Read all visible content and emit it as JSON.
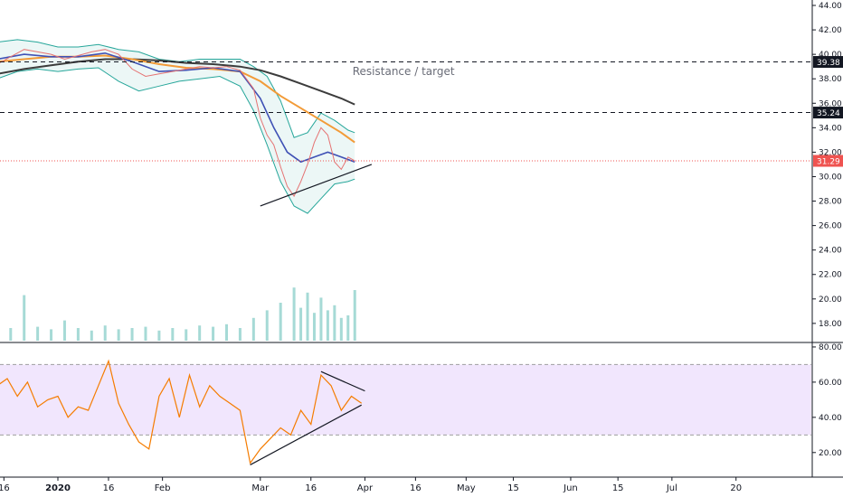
{
  "chart_data": {
    "type": "line",
    "panes": [
      "price",
      "rsi"
    ],
    "price_axis": {
      "ylim": [
        16.8,
        44.6
      ],
      "ticks": [
        "44.00",
        "42.00",
        "40.00",
        "38.00",
        "36.00",
        "34.00",
        "32.00",
        "30.00",
        "28.00",
        "26.00",
        "24.00",
        "22.00",
        "20.00",
        "18.00"
      ]
    },
    "rsi_axis": {
      "ylim": [
        5,
        81
      ],
      "ticks": [
        "80.00",
        "60.00",
        "40.00",
        "20.00"
      ],
      "band": [
        30,
        70
      ]
    },
    "x_axis": {
      "labels": [
        {
          "text": "16",
          "day": -16,
          "bold": false
        },
        {
          "text": "2020",
          "day": 0,
          "bold": true
        },
        {
          "text": "16",
          "day": 15,
          "bold": false
        },
        {
          "text": "Feb",
          "day": 31,
          "bold": false
        },
        {
          "text": "Mar",
          "day": 60,
          "bold": false
        },
        {
          "text": "16",
          "day": 75,
          "bold": false
        },
        {
          "text": "Apr",
          "day": 91,
          "bold": false
        },
        {
          "text": "16",
          "day": 106,
          "bold": false
        },
        {
          "text": "May",
          "day": 121,
          "bold": false
        },
        {
          "text": "15",
          "day": 135,
          "bold": false
        },
        {
          "text": "Jun",
          "day": 152,
          "bold": false
        },
        {
          "text": "15",
          "day": 166,
          "bold": false
        },
        {
          "text": "Jul",
          "day": 182,
          "bold": false
        },
        {
          "text": "20",
          "day": 201,
          "bold": false
        }
      ]
    },
    "horizontal_levels": [
      {
        "value": 39.38,
        "label": "39.38",
        "style": "dashed",
        "color": "#131722"
      },
      {
        "value": 35.24,
        "label": "35.24",
        "style": "dashed",
        "color": "#131722"
      },
      {
        "value": 31.29,
        "label": "31.29",
        "style": "dotted",
        "color": "#ef5350"
      }
    ],
    "annotations": [
      {
        "text": "Resistance / target",
        "day": 75,
        "value": 38.6
      }
    ],
    "trendlines": [
      {
        "pane": "price",
        "from": [
          60,
          27.6
        ],
        "to": [
          93,
          31.0
        ]
      },
      {
        "pane": "rsi",
        "from": [
          57,
          13
        ],
        "to": [
          90,
          47
        ]
      },
      {
        "pane": "rsi",
        "from": [
          78,
          66
        ],
        "to": [
          91,
          55
        ]
      }
    ],
    "series": {
      "price_close": {
        "color": "#e57373",
        "days": [
          -18,
          -14,
          -10,
          -6,
          -2,
          2,
          6,
          10,
          14,
          18,
          22,
          26,
          30,
          34,
          38,
          42,
          46,
          50,
          54,
          58,
          60,
          62,
          64,
          66,
          68,
          70,
          72,
          74,
          76,
          78,
          80,
          82,
          84,
          86,
          88
        ],
        "values": [
          39.2,
          39.8,
          40.4,
          40.2,
          40.0,
          39.6,
          39.9,
          40.2,
          40.4,
          40.0,
          38.8,
          38.2,
          38.4,
          38.6,
          38.8,
          39.0,
          38.9,
          39.0,
          38.7,
          37.2,
          34.8,
          33.4,
          32.6,
          30.8,
          29.2,
          28.4,
          29.6,
          31.0,
          32.8,
          34.0,
          33.4,
          31.2,
          30.6,
          31.6,
          31.3
        ]
      },
      "sma_short": {
        "color": "#3f51b5",
        "days": [
          -18,
          -10,
          -2,
          6,
          14,
          22,
          30,
          38,
          46,
          54,
          60,
          64,
          68,
          72,
          76,
          80,
          84,
          88
        ],
        "values": [
          39.6,
          40.0,
          39.8,
          39.8,
          40.1,
          39.4,
          38.6,
          38.7,
          38.9,
          38.6,
          36.4,
          34.0,
          32.0,
          31.2,
          31.6,
          32.0,
          31.6,
          31.2
        ]
      },
      "sma_mid": {
        "color": "#f29b38",
        "days": [
          -18,
          -10,
          -2,
          6,
          14,
          22,
          30,
          38,
          46,
          54,
          60,
          66,
          72,
          78,
          84,
          88
        ],
        "values": [
          39.4,
          39.6,
          39.8,
          39.8,
          39.9,
          39.6,
          39.2,
          38.9,
          38.8,
          38.6,
          37.8,
          36.6,
          35.6,
          34.6,
          33.6,
          32.8
        ]
      },
      "sma_long": {
        "color": "#3c3c3c",
        "days": [
          -18,
          -10,
          -2,
          6,
          14,
          22,
          30,
          38,
          46,
          54,
          60,
          66,
          72,
          78,
          84,
          88
        ],
        "values": [
          38.4,
          38.8,
          39.1,
          39.4,
          39.6,
          39.6,
          39.5,
          39.3,
          39.2,
          39.0,
          38.7,
          38.2,
          37.6,
          37.0,
          36.4,
          35.9
        ]
      },
      "bb_upper": {
        "color": "#26a69a",
        "days": [
          -18,
          -12,
          -6,
          0,
          6,
          12,
          18,
          24,
          30,
          36,
          42,
          48,
          54,
          58,
          62,
          66,
          70,
          74,
          78,
          82,
          86,
          88
        ],
        "values": [
          41.0,
          41.2,
          41.0,
          40.6,
          40.6,
          40.8,
          40.4,
          40.2,
          39.6,
          39.4,
          39.6,
          39.6,
          39.6,
          39.0,
          38.2,
          36.2,
          33.2,
          33.6,
          35.2,
          34.6,
          33.8,
          33.6
        ]
      },
      "bb_lower": {
        "color": "#26a69a",
        "days": [
          -18,
          -12,
          -6,
          0,
          6,
          12,
          18,
          24,
          30,
          36,
          42,
          48,
          54,
          58,
          62,
          66,
          70,
          74,
          78,
          82,
          86,
          88
        ],
        "values": [
          38.0,
          38.6,
          38.8,
          38.6,
          38.8,
          38.9,
          37.8,
          37.0,
          37.4,
          37.8,
          38.0,
          38.2,
          37.4,
          35.4,
          32.6,
          29.6,
          27.6,
          27.0,
          28.2,
          29.4,
          29.6,
          29.8
        ]
      },
      "rsi": {
        "color": "#f57c00",
        "days": [
          -18,
          -15,
          -12,
          -9,
          -6,
          -3,
          0,
          3,
          6,
          9,
          12,
          15,
          18,
          21,
          24,
          27,
          30,
          33,
          36,
          39,
          42,
          45,
          48,
          51,
          54,
          57,
          60,
          63,
          66,
          69,
          72,
          75,
          78,
          81,
          84,
          87,
          90
        ],
        "values": [
          58,
          62,
          52,
          60,
          46,
          50,
          52,
          40,
          46,
          44,
          58,
          72,
          48,
          36,
          26,
          22,
          52,
          62,
          40,
          64,
          46,
          58,
          52,
          48,
          44,
          14,
          22,
          28,
          34,
          30,
          44,
          36,
          64,
          58,
          44,
          52,
          48
        ]
      }
    },
    "volume": {
      "color": "#80cbc4",
      "days": [
        -18,
        -14,
        -10,
        -6,
        -2,
        2,
        6,
        10,
        14,
        18,
        22,
        26,
        30,
        34,
        38,
        42,
        46,
        50,
        54,
        58,
        62,
        66,
        70,
        72,
        74,
        76,
        78,
        80,
        82,
        84,
        86,
        88
      ],
      "values": [
        1.2,
        1.0,
        3.6,
        1.1,
        0.9,
        1.6,
        1.0,
        0.8,
        1.2,
        0.9,
        1.0,
        1.1,
        0.8,
        1.0,
        0.9,
        1.2,
        1.1,
        1.3,
        1.0,
        1.8,
        2.4,
        3.0,
        4.2,
        2.6,
        3.8,
        2.2,
        3.4,
        2.4,
        2.8,
        1.8,
        2.0,
        4.0
      ]
    }
  }
}
